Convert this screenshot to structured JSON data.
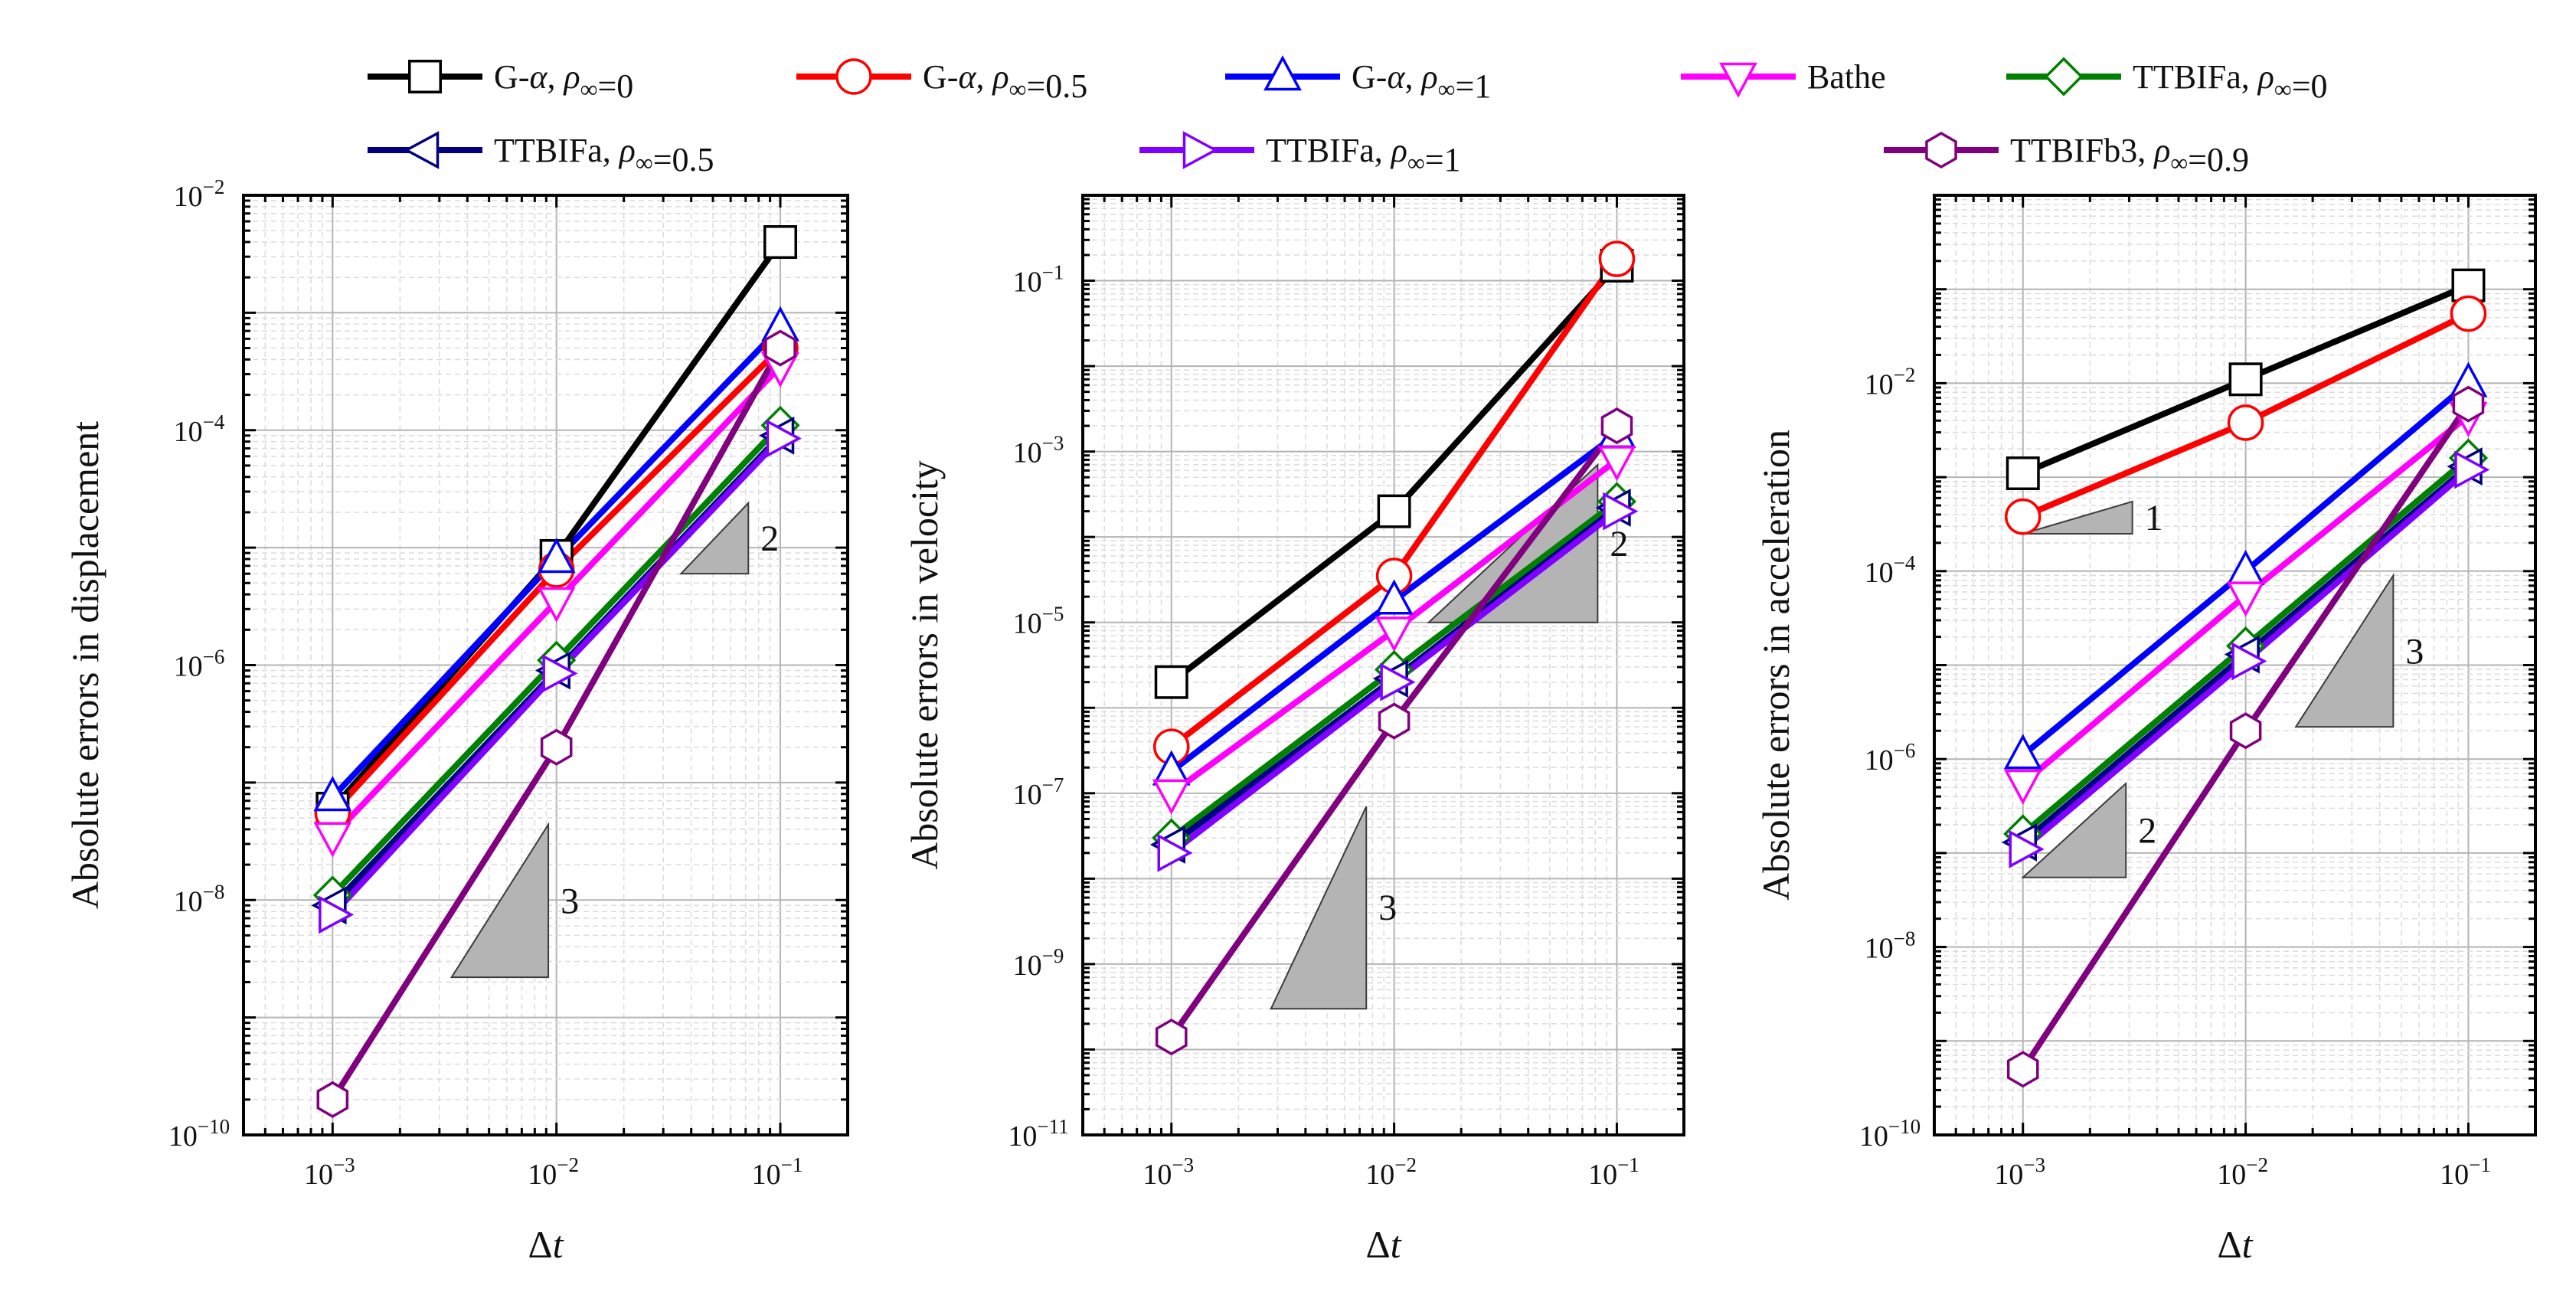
{
  "legend": [
    {
      "series": 0,
      "text": "G-α, ρ∞=0"
    },
    {
      "series": 1,
      "text": "G-α, ρ∞=0.5"
    },
    {
      "series": 2,
      "text": "G-α, ρ∞=1"
    },
    {
      "series": 3,
      "text": "Bathe"
    },
    {
      "series": 4,
      "text": "TTBIFa, ρ∞=0"
    },
    {
      "series": 5,
      "text": "TTBIFa, ρ∞=0.5"
    },
    {
      "series": 6,
      "text": "TTBIFa, ρ∞=1"
    },
    {
      "series": 7,
      "text": "TTBIFb3, ρ∞=0.9"
    }
  ],
  "series_style": [
    {
      "name": "G-α, ρ∞=0",
      "color": "#000000",
      "marker": "square"
    },
    {
      "name": "G-α, ρ∞=0.5",
      "color": "#ff0000",
      "marker": "circle"
    },
    {
      "name": "G-α, ρ∞=1",
      "color": "#0000ff",
      "marker": "triangle-up"
    },
    {
      "name": "Bathe",
      "color": "#ff00ff",
      "marker": "triangle-down"
    },
    {
      "name": "TTBIFa, ρ∞=0",
      "color": "#008000",
      "marker": "diamond"
    },
    {
      "name": "TTBIFa, ρ∞=0.5",
      "color": "#000080",
      "marker": "triangle-left"
    },
    {
      "name": "TTBIFa, ρ∞=1",
      "color": "#8000ff",
      "marker": "triangle-right"
    },
    {
      "name": "TTBIFb3, ρ∞=0.9",
      "color": "#800080",
      "marker": "hexagon"
    }
  ],
  "chart_data": [
    {
      "type": "line",
      "xscale": "log",
      "yscale": "log",
      "xlabel": "Δt",
      "ylabel": "Absolute errors in displacement",
      "xlim": [
        0.0004,
        0.2
      ],
      "ylim": [
        1e-10,
        0.01
      ],
      "x": [
        0.001,
        0.01,
        0.1
      ],
      "xticks": [
        {
          "v": 0.001,
          "b": "10",
          "e": "−3"
        },
        {
          "v": 0.01,
          "b": "10",
          "e": "−2"
        },
        {
          "v": 0.1,
          "b": "10",
          "e": "−1"
        }
      ],
      "yticks": [
        {
          "v": 1e-10,
          "b": "10",
          "e": "−10"
        },
        {
          "v": 1e-08,
          "b": "10",
          "e": "−8"
        },
        {
          "v": 1e-06,
          "b": "10",
          "e": "−6"
        },
        {
          "v": 0.0001,
          "b": "10",
          "e": "−4"
        },
        {
          "v": 0.01,
          "b": "10",
          "e": "−2"
        }
      ],
      "series": [
        {
          "name": "G-α, ρ∞=0",
          "values": [
            6e-08,
            8.5e-06,
            0.004
          ]
        },
        {
          "name": "G-α, ρ∞=0.5",
          "values": [
            5.5e-08,
            6.5e-06,
            0.0005
          ]
        },
        {
          "name": "G-α, ρ∞=1",
          "values": [
            7.5e-08,
            8e-06,
            0.00075
          ]
        },
        {
          "name": "Bathe",
          "values": [
            3.5e-08,
            3.5e-06,
            0.00035
          ]
        },
        {
          "name": "TTBIFa, ρ∞=0",
          "values": [
            1.1e-08,
            1.1e-06,
            0.00011
          ]
        },
        {
          "name": "TTBIFa, ρ∞=0.5",
          "values": [
            9e-09,
            9e-07,
            9e-05
          ]
        },
        {
          "name": "TTBIFa, ρ∞=1",
          "values": [
            7.5e-09,
            8.5e-07,
            8.5e-05
          ]
        },
        {
          "name": "TTBIFb3, ρ∞=0.9",
          "values": [
            2e-10,
            2e-07,
            0.0005
          ]
        }
      ],
      "slope_triangles": [
        {
          "label": "2",
          "x0": 0.036,
          "x1": 0.072,
          "y0": 6e-06,
          "y1": 2.4e-05
        },
        {
          "label": "3",
          "x0": 0.0034,
          "x1": 0.0092,
          "y0": 2.2e-09,
          "y1": 4.4e-08
        }
      ]
    },
    {
      "type": "line",
      "xscale": "log",
      "yscale": "log",
      "xlabel": "Δt",
      "ylabel": "Absolute errors in velocity",
      "xlim": [
        0.0004,
        0.2
      ],
      "ylim": [
        1e-11,
        1.0
      ],
      "x": [
        0.001,
        0.01,
        0.1
      ],
      "xticks": [
        {
          "v": 0.001,
          "b": "10",
          "e": "−3"
        },
        {
          "v": 0.01,
          "b": "10",
          "e": "−2"
        },
        {
          "v": 0.1,
          "b": "10",
          "e": "−1"
        }
      ],
      "yticks": [
        {
          "v": 1e-11,
          "b": "10",
          "e": "−11"
        },
        {
          "v": 1e-09,
          "b": "10",
          "e": "−9"
        },
        {
          "v": 1e-07,
          "b": "10",
          "e": "−7"
        },
        {
          "v": 1e-05,
          "b": "10",
          "e": "−5"
        },
        {
          "v": 0.001,
          "b": "10",
          "e": "−3"
        },
        {
          "v": 0.1,
          "b": "10",
          "e": "−1"
        }
      ],
      "series": [
        {
          "name": "G-α, ρ∞=0",
          "values": [
            2e-06,
            0.0002,
            0.15
          ]
        },
        {
          "name": "G-α, ρ∞=0.5",
          "values": [
            3.5e-07,
            3.5e-05,
            0.18
          ]
        },
        {
          "name": "G-α, ρ∞=1",
          "values": [
            1.8e-07,
            1.8e-05,
            0.0016
          ]
        },
        {
          "name": "Bathe",
          "values": [
            1e-07,
            8e-06,
            0.0008
          ]
        },
        {
          "name": "TTBIFa, ρ∞=0",
          "values": [
            3e-08,
            2.8e-06,
            0.00026
          ]
        },
        {
          "name": "TTBIFa, ρ∞=0.5",
          "values": [
            2.5e-08,
            2.2e-06,
            0.00022
          ]
        },
        {
          "name": "TTBIFa, ρ∞=1",
          "values": [
            2e-08,
            2e-06,
            0.0002
          ]
        },
        {
          "name": "TTBIFb3, ρ∞=0.9",
          "values": [
            1.4e-10,
            7e-07,
            0.002
          ]
        }
      ],
      "slope_triangles": [
        {
          "label": "2",
          "x0": 0.0143,
          "x1": 0.082,
          "y0": 1e-05,
          "y1": 0.0007
        },
        {
          "label": "3",
          "x0": 0.0028,
          "x1": 0.0075,
          "y0": 3e-10,
          "y1": 7e-08
        }
      ]
    },
    {
      "type": "line",
      "xscale": "log",
      "yscale": "log",
      "xlabel": "Δt",
      "ylabel": "Absolute errors in acceleration",
      "xlim": [
        0.0004,
        0.2
      ],
      "ylim": [
        1e-10,
        1.0
      ],
      "x": [
        0.001,
        0.01,
        0.1
      ],
      "xticks": [
        {
          "v": 0.001,
          "b": "10",
          "e": "−3"
        },
        {
          "v": 0.01,
          "b": "10",
          "e": "−2"
        },
        {
          "v": 0.1,
          "b": "10",
          "e": "−1"
        }
      ],
      "yticks": [
        {
          "v": 1e-10,
          "b": "10",
          "e": "−10"
        },
        {
          "v": 1e-08,
          "b": "10",
          "e": "−8"
        },
        {
          "v": 1e-06,
          "b": "10",
          "e": "−6"
        },
        {
          "v": 0.0001,
          "b": "10",
          "e": "−4"
        },
        {
          "v": 0.01,
          "b": "10",
          "e": "−2"
        }
      ],
      "series": [
        {
          "name": "G-α, ρ∞=0",
          "values": [
            0.0011,
            0.011,
            0.11
          ]
        },
        {
          "name": "G-α, ρ∞=0.5",
          "values": [
            0.00038,
            0.0038,
            0.055
          ]
        },
        {
          "name": "G-α, ρ∞=1",
          "values": [
            1.1e-06,
            0.0001,
            0.01
          ]
        },
        {
          "name": "Bathe",
          "values": [
            5.5e-07,
            5.5e-05,
            0.0045
          ]
        },
        {
          "name": "TTBIFa, ρ∞=0",
          "values": [
            1.6e-07,
            1.6e-05,
            0.0016
          ]
        },
        {
          "name": "TTBIFa, ρ∞=0.5",
          "values": [
            1.3e-07,
            1.3e-05,
            0.0013
          ]
        },
        {
          "name": "TTBIFa, ρ∞=1",
          "values": [
            1.1e-07,
            1.1e-05,
            0.0012
          ]
        },
        {
          "name": "TTBIFb3, ρ∞=0.9",
          "values": [
            5e-10,
            2e-06,
            0.006
          ]
        }
      ],
      "slope_triangles": [
        {
          "label": "1",
          "x0": 0.001,
          "x1": 0.0031,
          "y0": 0.00025,
          "y1": 0.00055
        },
        {
          "label": "2",
          "x0": 0.001,
          "x1": 0.0029,
          "y0": 5.5e-08,
          "y1": 5.5e-07
        },
        {
          "label": "3",
          "x0": 0.0168,
          "x1": 0.046,
          "y0": 2.2e-06,
          "y1": 9e-05
        }
      ]
    }
  ]
}
